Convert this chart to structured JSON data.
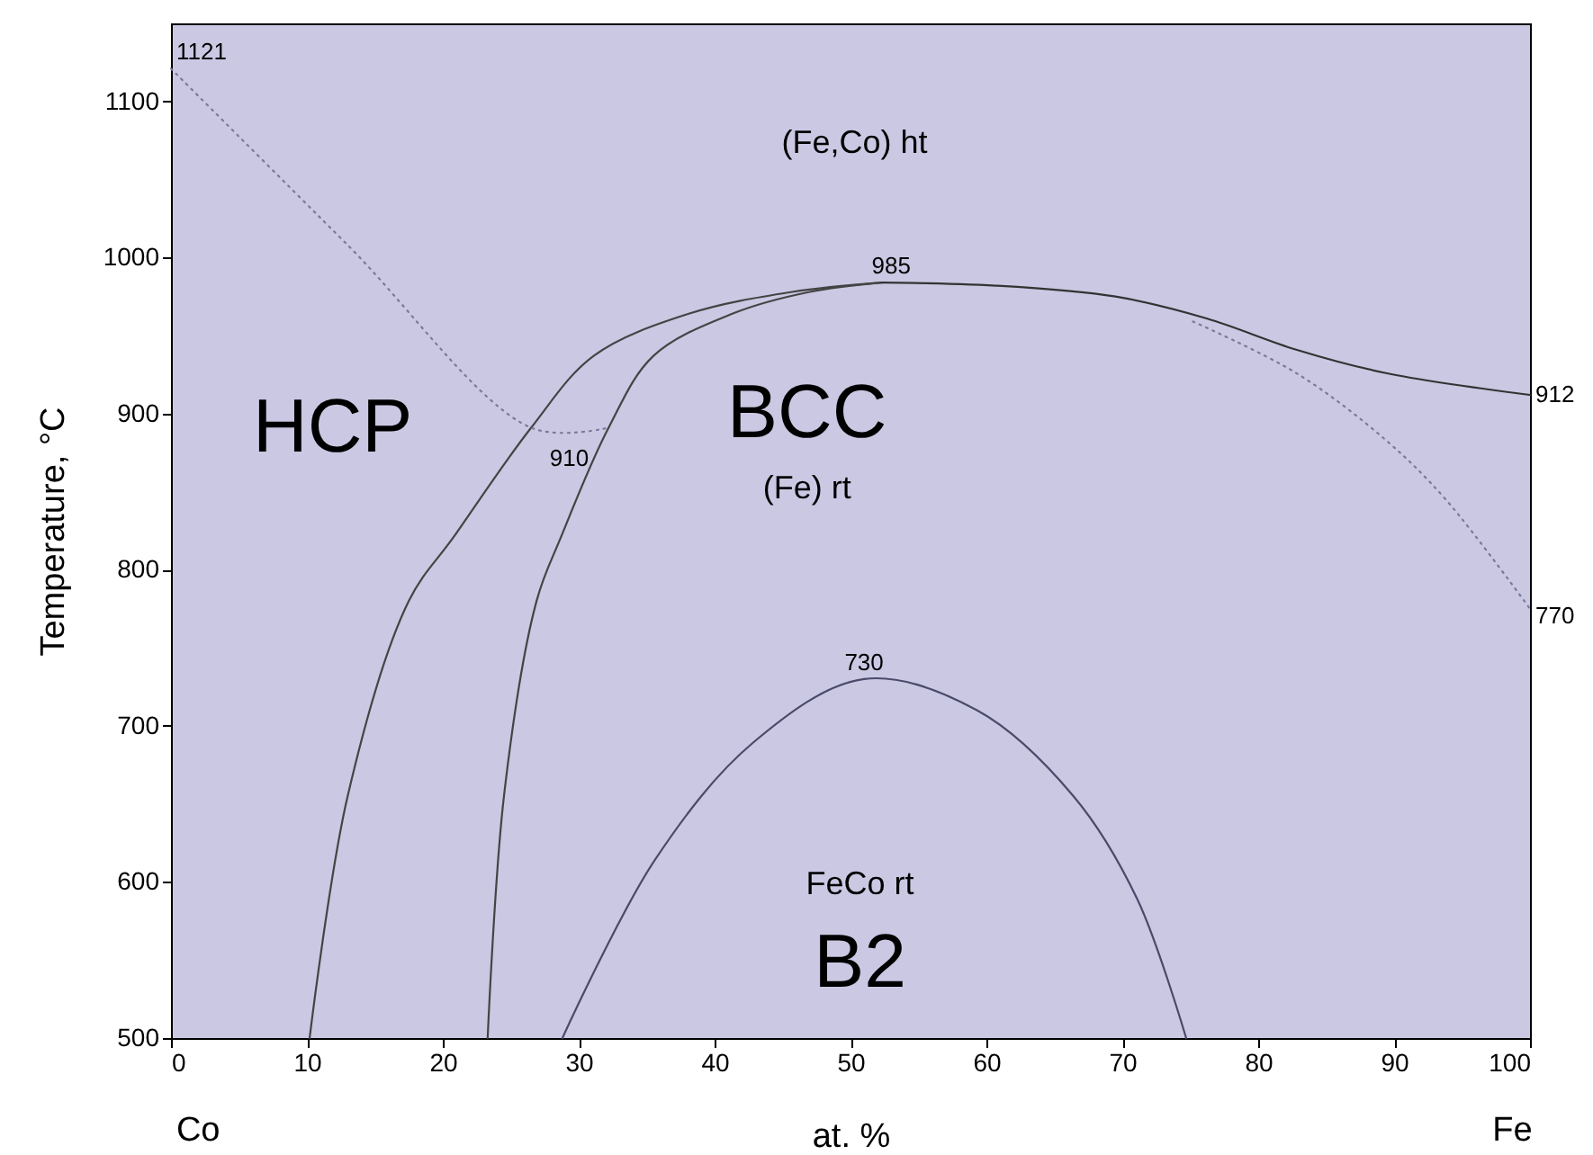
{
  "chart_data": {
    "type": "line",
    "xlabel": "at. %",
    "ylabel": "Temperature, °C",
    "xlim": [
      0,
      100
    ],
    "ylim": [
      500,
      1150
    ],
    "xticks": [
      0,
      10,
      20,
      30,
      40,
      50,
      60,
      70,
      80,
      90,
      100
    ],
    "yticks": [
      500,
      600,
      700,
      800,
      900,
      1000,
      1100
    ],
    "grid": false,
    "marker": "none",
    "series": [
      {
        "color": "#444444",
        "line_style": "solid",
        "x": [
          10.2,
          13,
          17.5,
          20.8,
          26.5,
          31.1,
          38.1,
          45.7,
          52.3
        ],
        "values": [
          500,
          655,
          780,
          821,
          891,
          937,
          964,
          978,
          984
        ]
      },
      {
        "color": "#444444",
        "line_style": "solid",
        "x": [
          23.3,
          24.5,
          26.9,
          28.7,
          32.2,
          35.5,
          41.3,
          47,
          52.3
        ],
        "values": [
          500,
          655,
          780,
          821,
          891,
          937,
          964,
          978,
          984
        ]
      },
      {
        "color": "#333333",
        "line_style": "solid",
        "x": [
          52.3,
          60.7,
          69.5,
          76.2,
          82.8,
          89.4,
          100
        ],
        "values": [
          984,
          982,
          975,
          961,
          941,
          926,
          912
        ]
      },
      {
        "color": "#7a7a99",
        "line_style": "dotted",
        "x": [
          0,
          13,
          26.5,
          32.2
        ],
        "values": [
          1121,
          1008,
          891,
          891
        ]
      },
      {
        "color": "#7a7a99",
        "line_style": "dotted",
        "x": [
          75.2,
          82.8,
          89.4,
          93.8,
          100
        ],
        "values": [
          959,
          926,
          883,
          845,
          775
        ]
      },
      {
        "color": "#4a4a6a",
        "line_style": "solid",
        "x": [
          28.8,
          35.6,
          42.8,
          51,
          59.3,
          66.4,
          71.1,
          74.7
        ],
        "values": [
          500,
          614,
          689,
          730,
          710,
          655,
          589,
          500
        ]
      }
    ],
    "annotations": [
      {
        "text": "1121",
        "x": 0,
        "y": 1121
      },
      {
        "text": "985",
        "x": 53,
        "y": 984
      },
      {
        "text": "912",
        "x": 100,
        "y": 912
      },
      {
        "text": "770",
        "x": 100,
        "y": 770
      },
      {
        "text": "730",
        "x": 51,
        "y": 730
      },
      "910",
      "(Fe,Co) ht",
      "HCP",
      "BCC",
      "(Fe) rt",
      "FeCo rt",
      "B2",
      "Co",
      "Fe"
    ]
  }
}
